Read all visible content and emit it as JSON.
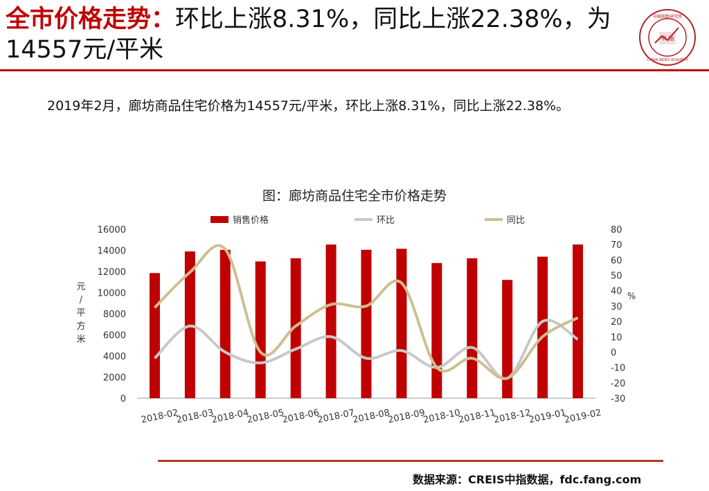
{
  "slide": {
    "title_highlight": "全市价格走势：",
    "title_rest": "环比上涨8.31%，同比上涨22.38%，为14557元/平米",
    "summary": "2019年2月，廊坊商品住宅价格为14557元/平米，环比上涨8.31%，同比上涨22.38%。",
    "source": "数据来源：CREIS中指数据，fdc.fang.com",
    "logo": {
      "center_text": "中 指",
      "ring_text": "CHINA INDEX ACADEMY",
      "top_text": "中国指数研究院"
    }
  },
  "colors": {
    "accent": "#c00000",
    "bar": "#c00000",
    "mom_line": "#c8c8c8",
    "yoy_line": "#cdbf92"
  },
  "chart_data": {
    "type": "bar",
    "title": "图：廊坊商品住宅全市价格走势",
    "categories": [
      "2018-02",
      "2018-03",
      "2018-04",
      "2018-05",
      "2018-06",
      "2018-07",
      "2018-08",
      "2018-09",
      "2018-10",
      "2018-11",
      "2018-12",
      "2019-01",
      "2019-02"
    ],
    "series": [
      {
        "name": "销售价格",
        "type": "bar",
        "axis": "left",
        "values": [
          11850,
          13900,
          14050,
          12950,
          13250,
          14550,
          14050,
          14150,
          12800,
          13250,
          11200,
          13400,
          14557
        ]
      },
      {
        "name": "环比",
        "type": "line",
        "axis": "right",
        "values": [
          -4,
          17,
          0,
          -7,
          2,
          10,
          -4,
          1,
          -10,
          3,
          -17,
          20,
          8.31
        ]
      },
      {
        "name": "同比",
        "type": "line",
        "axis": "right",
        "values": [
          29,
          52,
          67,
          0,
          17,
          31,
          30,
          45,
          -10,
          -4,
          -17,
          10,
          22.38
        ]
      }
    ],
    "ylabel_left": "元/平方米",
    "ylabel_right": "%",
    "ylim_left": [
      0,
      16000
    ],
    "ylim_right": [
      -30,
      80
    ],
    "yticks_left": [
      0,
      2000,
      4000,
      6000,
      8000,
      10000,
      12000,
      14000,
      16000
    ],
    "yticks_right": [
      -30,
      -20,
      -10,
      0,
      10,
      20,
      30,
      40,
      50,
      60,
      70,
      80
    ],
    "legend_position": "top",
    "grid": false
  }
}
